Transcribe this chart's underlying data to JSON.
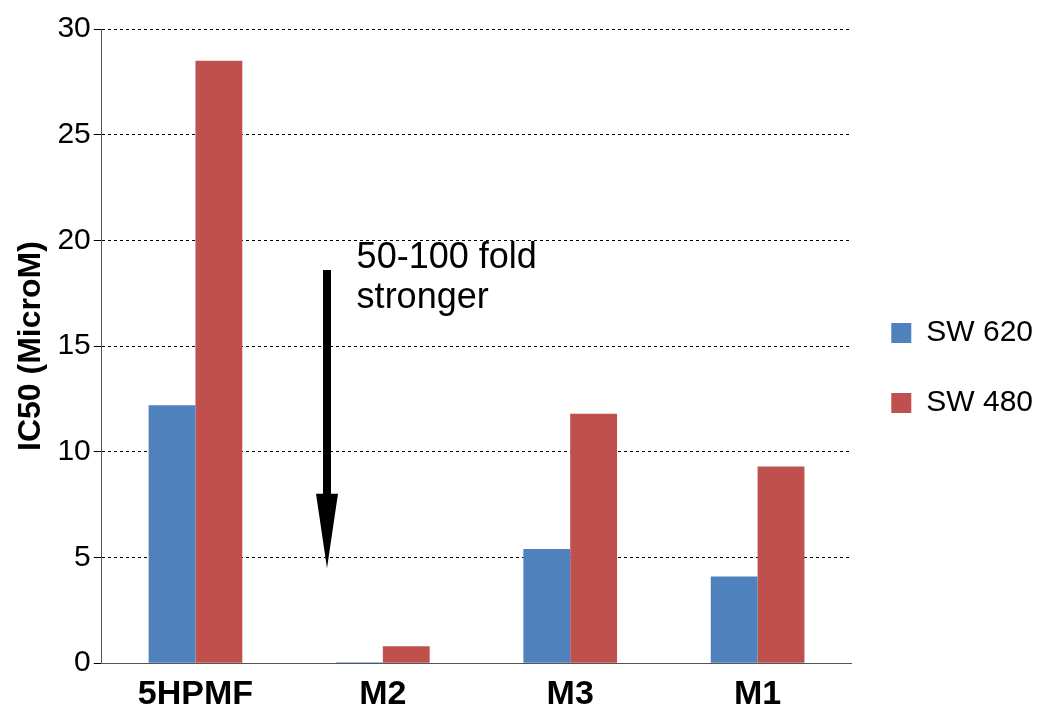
{
  "chart_data": {
    "type": "bar",
    "ylabel": "IC50 (MicroM)",
    "categories": [
      "5HPMF",
      "M2",
      "M3",
      "M1"
    ],
    "series": [
      {
        "name": "SW 620",
        "color": "#4f81bd",
        "values": [
          12.2,
          0.05,
          5.4,
          4.1
        ]
      },
      {
        "name": "SW 480",
        "color": "#c0504d",
        "values": [
          28.5,
          0.8,
          11.8,
          9.3
        ]
      }
    ],
    "ylim": [
      0,
      30
    ],
    "yticks": [
      0,
      5,
      10,
      15,
      20,
      25,
      30
    ],
    "grid": "y",
    "legend": "right",
    "annotations": [
      "50-100 fold stronger"
    ]
  }
}
